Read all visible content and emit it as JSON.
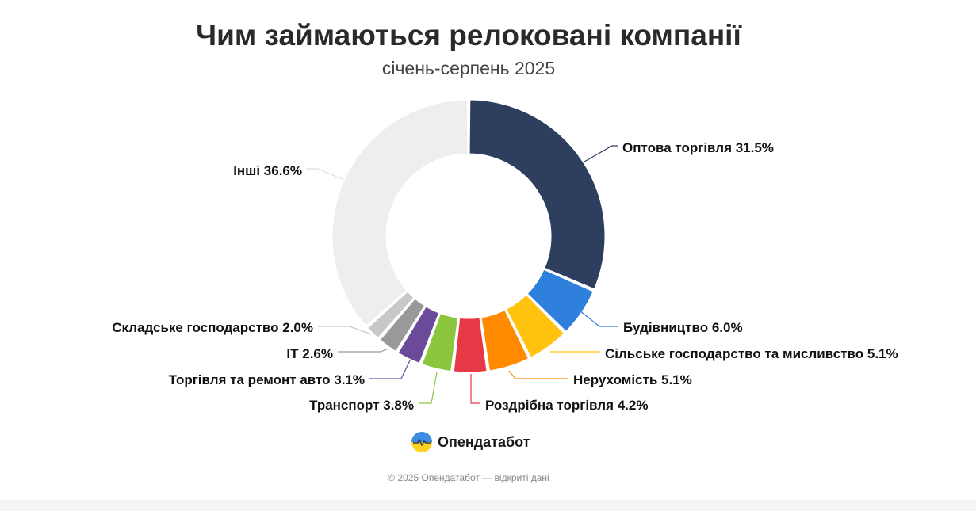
{
  "title": "Чим займаються релоковані компанії",
  "subtitle": "січень-серпень 2025",
  "brand": {
    "name": "Опендатабот"
  },
  "footer": "© 2025 Опендатабот — відкриті дані",
  "chart_data": {
    "type": "pie",
    "donut": true,
    "title": "Чим займаються релоковані компанії",
    "subtitle": "січень-серпень 2025",
    "categories": [
      "Оптова торгівля",
      "Будівництво",
      "Сільське господарство та мисливство",
      "Нерухомість",
      "Роздрібна торгівля",
      "Транспорт",
      "Торгівля та ремонт авто",
      "IT",
      "Складське господарство",
      "Інші"
    ],
    "values": [
      31.5,
      6.0,
      5.1,
      5.1,
      4.2,
      3.8,
      3.1,
      2.6,
      2.0,
      36.6
    ],
    "labels": [
      "Оптова торгівля 31.5%",
      "Будівництво 6.0%",
      "Сільське господарство та мисливство 5.1%",
      "Нерухомість 5.1%",
      "Роздрібна торгівля 4.2%",
      "Транспорт 3.8%",
      "Торгівля та ремонт авто 3.1%",
      "IT 2.6%",
      "Складське господарство 2.0%",
      "Інші 36.6%"
    ],
    "colors": [
      "#2d3e5e",
      "#2f80dd",
      "#ffc20e",
      "#ff8a00",
      "#e63946",
      "#8cc63f",
      "#6b4a9a",
      "#999999",
      "#c8c8c8",
      "#eeeeee"
    ],
    "unit": "%"
  }
}
